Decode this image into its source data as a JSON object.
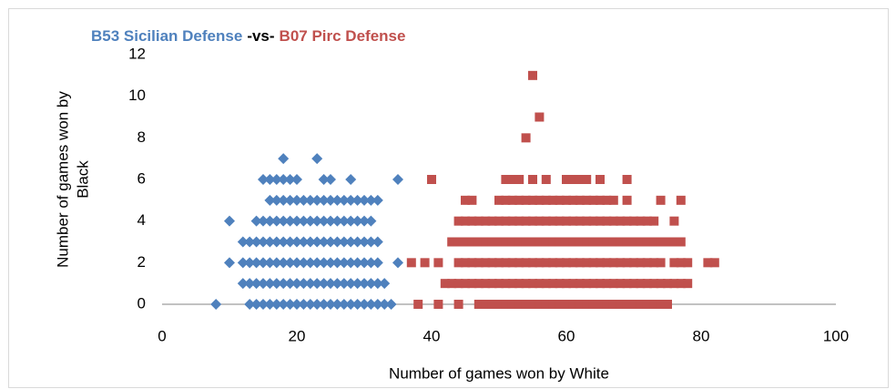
{
  "chart_data": {
    "type": "scatter",
    "title_separator": "-vs-",
    "xlabel": "Number of games won by White",
    "ylabel_lines": [
      "Number of games won by",
      "Black"
    ],
    "xlim": [
      0,
      100
    ],
    "xticks": [
      0,
      20,
      40,
      60,
      80,
      100
    ],
    "ylim": [
      0,
      12
    ],
    "yticks": [
      0,
      2,
      4,
      6,
      8,
      10,
      12
    ],
    "grid": false,
    "series": [
      {
        "name": "B53 Sicilian Defense",
        "color": "#4f81bd",
        "marker": "diamond",
        "x": [
          8,
          13,
          14,
          15,
          16,
          17,
          18,
          19,
          20,
          21,
          22,
          23,
          24,
          25,
          26,
          27,
          28,
          29,
          30,
          31,
          32,
          33,
          34,
          12,
          13,
          14,
          15,
          16,
          17,
          18,
          19,
          20,
          21,
          22,
          23,
          24,
          25,
          26,
          27,
          28,
          29,
          30,
          31,
          32,
          33,
          10,
          12,
          13,
          14,
          15,
          16,
          17,
          18,
          19,
          20,
          21,
          22,
          23,
          24,
          25,
          26,
          27,
          28,
          29,
          30,
          31,
          32,
          35,
          12,
          13,
          14,
          15,
          16,
          17,
          18,
          19,
          20,
          21,
          22,
          23,
          24,
          25,
          26,
          27,
          28,
          29,
          30,
          31,
          32,
          10,
          14,
          15,
          16,
          17,
          18,
          19,
          20,
          21,
          22,
          23,
          24,
          25,
          26,
          27,
          28,
          29,
          30,
          31,
          16,
          17,
          18,
          19,
          20,
          21,
          22,
          23,
          24,
          25,
          26,
          27,
          28,
          29,
          30,
          31,
          32,
          15,
          16,
          17,
          18,
          19,
          20,
          24,
          25,
          28,
          35,
          18,
          23
        ],
        "values": [
          0,
          0,
          0,
          0,
          0,
          0,
          0,
          0,
          0,
          0,
          0,
          0,
          0,
          0,
          0,
          0,
          0,
          0,
          0,
          0,
          0,
          0,
          0,
          1,
          1,
          1,
          1,
          1,
          1,
          1,
          1,
          1,
          1,
          1,
          1,
          1,
          1,
          1,
          1,
          1,
          1,
          1,
          1,
          1,
          1,
          2,
          2,
          2,
          2,
          2,
          2,
          2,
          2,
          2,
          2,
          2,
          2,
          2,
          2,
          2,
          2,
          2,
          2,
          2,
          2,
          2,
          2,
          2,
          3,
          3,
          3,
          3,
          3,
          3,
          3,
          3,
          3,
          3,
          3,
          3,
          3,
          3,
          3,
          3,
          3,
          3,
          3,
          3,
          3,
          4,
          4,
          4,
          4,
          4,
          4,
          4,
          4,
          4,
          4,
          4,
          4,
          4,
          4,
          4,
          4,
          4,
          4,
          4,
          5,
          5,
          5,
          5,
          5,
          5,
          5,
          5,
          5,
          5,
          5,
          5,
          5,
          5,
          5,
          5,
          5,
          6,
          6,
          6,
          6,
          6,
          6,
          6,
          6,
          6,
          6,
          7,
          7
        ]
      },
      {
        "name": "B07 Pirc Defense",
        "color": "#c0504d",
        "marker": "square",
        "x": [
          38,
          41,
          44,
          47,
          48,
          49,
          50,
          51,
          52,
          53,
          54,
          55,
          56,
          57,
          58,
          59,
          60,
          61,
          62,
          63,
          64,
          65,
          66,
          67,
          68,
          69,
          70,
          71,
          72,
          73,
          74,
          75,
          42,
          43,
          44,
          45,
          46,
          47,
          48,
          49,
          50,
          51,
          52,
          53,
          54,
          55,
          56,
          57,
          58,
          59,
          60,
          61,
          62,
          63,
          64,
          65,
          66,
          67,
          68,
          69,
          70,
          71,
          72,
          73,
          74,
          75,
          76,
          77,
          78,
          37,
          39,
          41,
          44,
          45,
          46,
          47,
          48,
          49,
          50,
          51,
          52,
          53,
          54,
          55,
          56,
          57,
          58,
          59,
          60,
          61,
          62,
          63,
          64,
          65,
          66,
          67,
          68,
          69,
          70,
          71,
          72,
          73,
          74,
          76,
          77,
          78,
          81,
          82,
          43,
          44,
          45,
          46,
          47,
          48,
          49,
          50,
          51,
          52,
          53,
          54,
          55,
          56,
          57,
          58,
          59,
          60,
          61,
          62,
          63,
          64,
          65,
          66,
          67,
          68,
          69,
          70,
          71,
          72,
          73,
          74,
          75,
          76,
          77,
          44,
          45,
          46,
          47,
          48,
          49,
          50,
          51,
          52,
          53,
          54,
          55,
          56,
          57,
          58,
          59,
          60,
          61,
          62,
          63,
          64,
          65,
          66,
          67,
          68,
          69,
          70,
          71,
          72,
          73,
          76,
          45,
          46,
          50,
          51,
          52,
          53,
          54,
          55,
          56,
          57,
          58,
          59,
          60,
          61,
          62,
          63,
          64,
          65,
          66,
          67,
          69,
          74,
          77,
          40,
          51,
          52,
          53,
          55,
          57,
          60,
          61,
          62,
          63,
          65,
          69,
          54,
          56,
          55
        ],
        "values": [
          0,
          0,
          0,
          0,
          0,
          0,
          0,
          0,
          0,
          0,
          0,
          0,
          0,
          0,
          0,
          0,
          0,
          0,
          0,
          0,
          0,
          0,
          0,
          0,
          0,
          0,
          0,
          0,
          0,
          0,
          0,
          0,
          1,
          1,
          1,
          1,
          1,
          1,
          1,
          1,
          1,
          1,
          1,
          1,
          1,
          1,
          1,
          1,
          1,
          1,
          1,
          1,
          1,
          1,
          1,
          1,
          1,
          1,
          1,
          1,
          1,
          1,
          1,
          1,
          1,
          1,
          1,
          1,
          1,
          2,
          2,
          2,
          2,
          2,
          2,
          2,
          2,
          2,
          2,
          2,
          2,
          2,
          2,
          2,
          2,
          2,
          2,
          2,
          2,
          2,
          2,
          2,
          2,
          2,
          2,
          2,
          2,
          2,
          2,
          2,
          2,
          2,
          2,
          2,
          2,
          2,
          2,
          2,
          3,
          3,
          3,
          3,
          3,
          3,
          3,
          3,
          3,
          3,
          3,
          3,
          3,
          3,
          3,
          3,
          3,
          3,
          3,
          3,
          3,
          3,
          3,
          3,
          3,
          3,
          3,
          3,
          3,
          3,
          3,
          3,
          3,
          3,
          3,
          4,
          4,
          4,
          4,
          4,
          4,
          4,
          4,
          4,
          4,
          4,
          4,
          4,
          4,
          4,
          4,
          4,
          4,
          4,
          4,
          4,
          4,
          4,
          4,
          4,
          4,
          4,
          4,
          4,
          4,
          4,
          5,
          5,
          5,
          5,
          5,
          5,
          5,
          5,
          5,
          5,
          5,
          5,
          5,
          5,
          5,
          5,
          5,
          5,
          5,
          5,
          5,
          5,
          5,
          6,
          6,
          6,
          6,
          6,
          6,
          6,
          6,
          6,
          6,
          6,
          6,
          8,
          9,
          11
        ]
      }
    ]
  }
}
